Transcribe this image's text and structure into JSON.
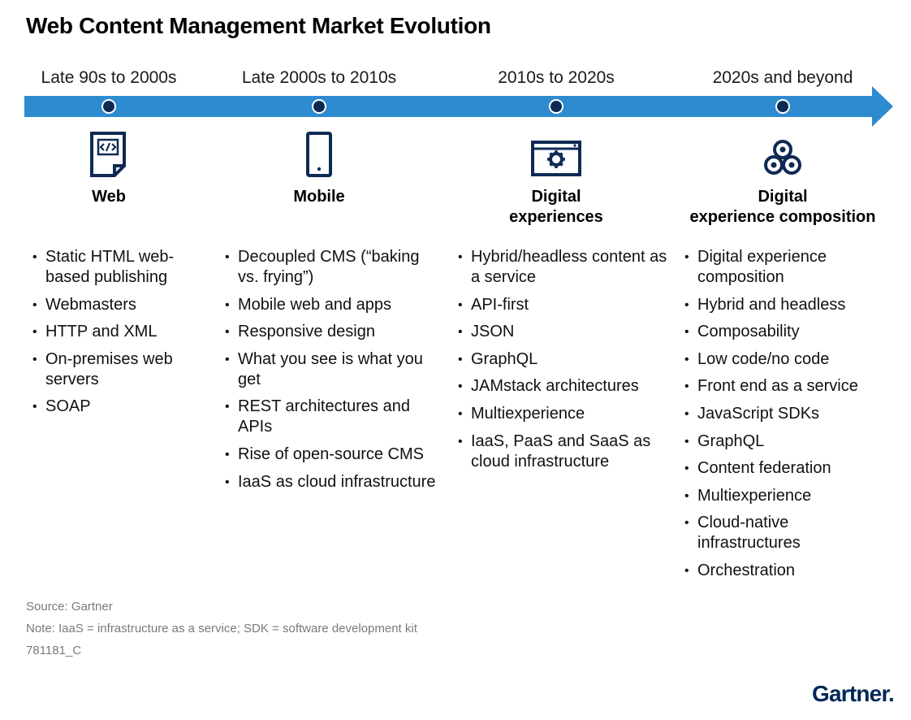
{
  "title": "Web Content Management Market Evolution",
  "colors": {
    "arrow": "#2e8bd0",
    "navy": "#0e2a54",
    "text": "#111111",
    "muted": "#7a7a7a"
  },
  "eras": [
    {
      "period": "Late 90s to 2000s",
      "icon": "web-page-code-icon",
      "stage_lines": [
        "Web"
      ],
      "items": [
        "Static HTML web-based publishing",
        "Webmasters",
        "HTTP and XML",
        "On-premises web servers",
        "SOAP"
      ]
    },
    {
      "period": "Late 2000s to 2010s",
      "icon": "mobile-phone-icon",
      "stage_lines": [
        "Mobile"
      ],
      "items": [
        "Decoupled CMS (“baking vs. frying”)",
        "Mobile web and apps",
        "Responsive design",
        "What you see is what you get",
        "REST architectures and APIs",
        "Rise of open-source CMS",
        "IaaS as cloud infrastructure"
      ]
    },
    {
      "period": "2010s to 2020s",
      "icon": "browser-gear-icon",
      "stage_lines": [
        "Digital",
        "experiences"
      ],
      "items": [
        "Hybrid/headless content as a service",
        "API-first",
        "JSON",
        "GraphQL",
        "JAMstack architectures",
        "Multiexperience",
        "IaaS, PaaS and SaaS as cloud infrastructure"
      ]
    },
    {
      "period": "2020s and beyond",
      "icon": "composition-rings-icon",
      "stage_lines": [
        "Digital",
        "experience composition"
      ],
      "items": [
        "Digital experience composition",
        "Hybrid and headless",
        "Composability",
        "Low code/no code",
        "Front end as a service",
        "JavaScript SDKs",
        "GraphQL",
        "Content federation",
        "Multiexperience",
        "Cloud-native infrastructures",
        "Orchestration"
      ]
    }
  ],
  "footer": {
    "source": "Source: Gartner",
    "note": "Note: IaaS = infrastructure as a service; SDK = software development kit",
    "id": "781181_C"
  },
  "logo": "Gartner"
}
